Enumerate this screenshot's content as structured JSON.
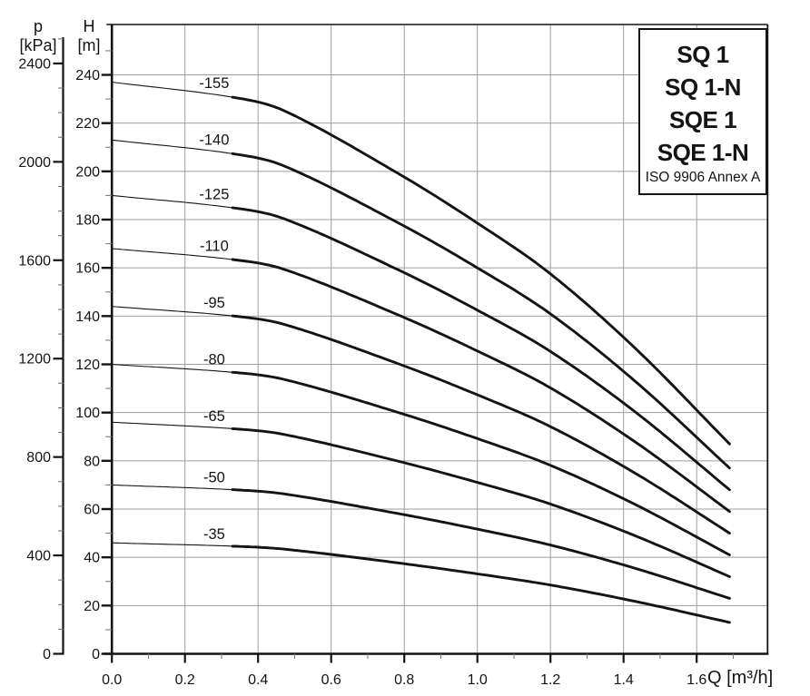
{
  "chart_data": {
    "type": "line",
    "title": "",
    "x_axis": {
      "label": "Q [m³/h]",
      "tick_labels": [
        "0.0",
        "0.2",
        "0.4",
        "0.6",
        "0.8",
        "1.0",
        "1.2",
        "1.4",
        "1.6"
      ],
      "tick_values": [
        0,
        0.2,
        0.4,
        0.6,
        0.8,
        1.0,
        1.2,
        1.4,
        1.6
      ],
      "minor_tick_values": [
        0.1,
        0.3,
        0.5,
        0.7,
        0.9,
        1.1,
        1.3,
        1.5,
        1.7
      ],
      "range": [
        0,
        1.79
      ]
    },
    "y_axis_h": {
      "label": "H [m]",
      "tick_values": [
        0,
        20,
        40,
        60,
        80,
        100,
        120,
        140,
        160,
        180,
        200,
        220,
        240
      ],
      "minor_tick_values": [
        10,
        30,
        50,
        70,
        90,
        110,
        130,
        150,
        170,
        190,
        210,
        230,
        250
      ],
      "range": [
        0,
        260
      ]
    },
    "y_axis_p": {
      "label": "p [kPa]",
      "tick_values": [
        0,
        400,
        800,
        1200,
        1600,
        2000,
        2400
      ],
      "minor_step": 100,
      "minor_max": 2500,
      "range": [
        0,
        2500
      ],
      "kpa_per_m": 9.80665
    },
    "grid": {
      "horizontal_every_m": 20,
      "vertical_every_q": 0.2,
      "grid_on": true
    },
    "q_start": 0,
    "q_end": 1.69,
    "q_thick_from": 0.335,
    "label_q_position": 0.28,
    "shape_knots": {
      "t": [
        0,
        0.2,
        0.28,
        0.466,
        0.592,
        0.71,
        0.85,
        1
      ],
      "s": [
        0,
        0.043,
        0.08,
        0.255,
        0.39,
        0.53,
        0.74,
        1
      ]
    },
    "curves": [
      {
        "label": "-155",
        "h_start": 237,
        "h_end": 87
      },
      {
        "label": "-140",
        "h_start": 213,
        "h_end": 77
      },
      {
        "label": "-125",
        "h_start": 190,
        "h_end": 68
      },
      {
        "label": "-110",
        "h_start": 168,
        "h_end": 59
      },
      {
        "label": "-95",
        "h_start": 144,
        "h_end": 50
      },
      {
        "label": "-80",
        "h_start": 120,
        "h_end": 41
      },
      {
        "label": "-65",
        "h_start": 96,
        "h_end": 32
      },
      {
        "label": "-50",
        "h_start": 70,
        "h_end": 23
      },
      {
        "label": "-35",
        "h_start": 46,
        "h_end": 13
      }
    ]
  },
  "axes_titles": {
    "p1": "p",
    "p2": "[kPa]",
    "h1": "H",
    "h2": "[m]",
    "q": "Q [m³/h]"
  },
  "legend": {
    "models": [
      "SQ 1",
      "SQ 1-N",
      "SQE 1",
      "SQE 1-N"
    ],
    "note": "ISO 9906 Annex A"
  },
  "colors": {
    "curve": "#141414",
    "frame": "#141414",
    "grid": "#9e9e9e",
    "minor_tick": "#7a7a7a",
    "text": "#141414",
    "background": "#ffffff"
  }
}
